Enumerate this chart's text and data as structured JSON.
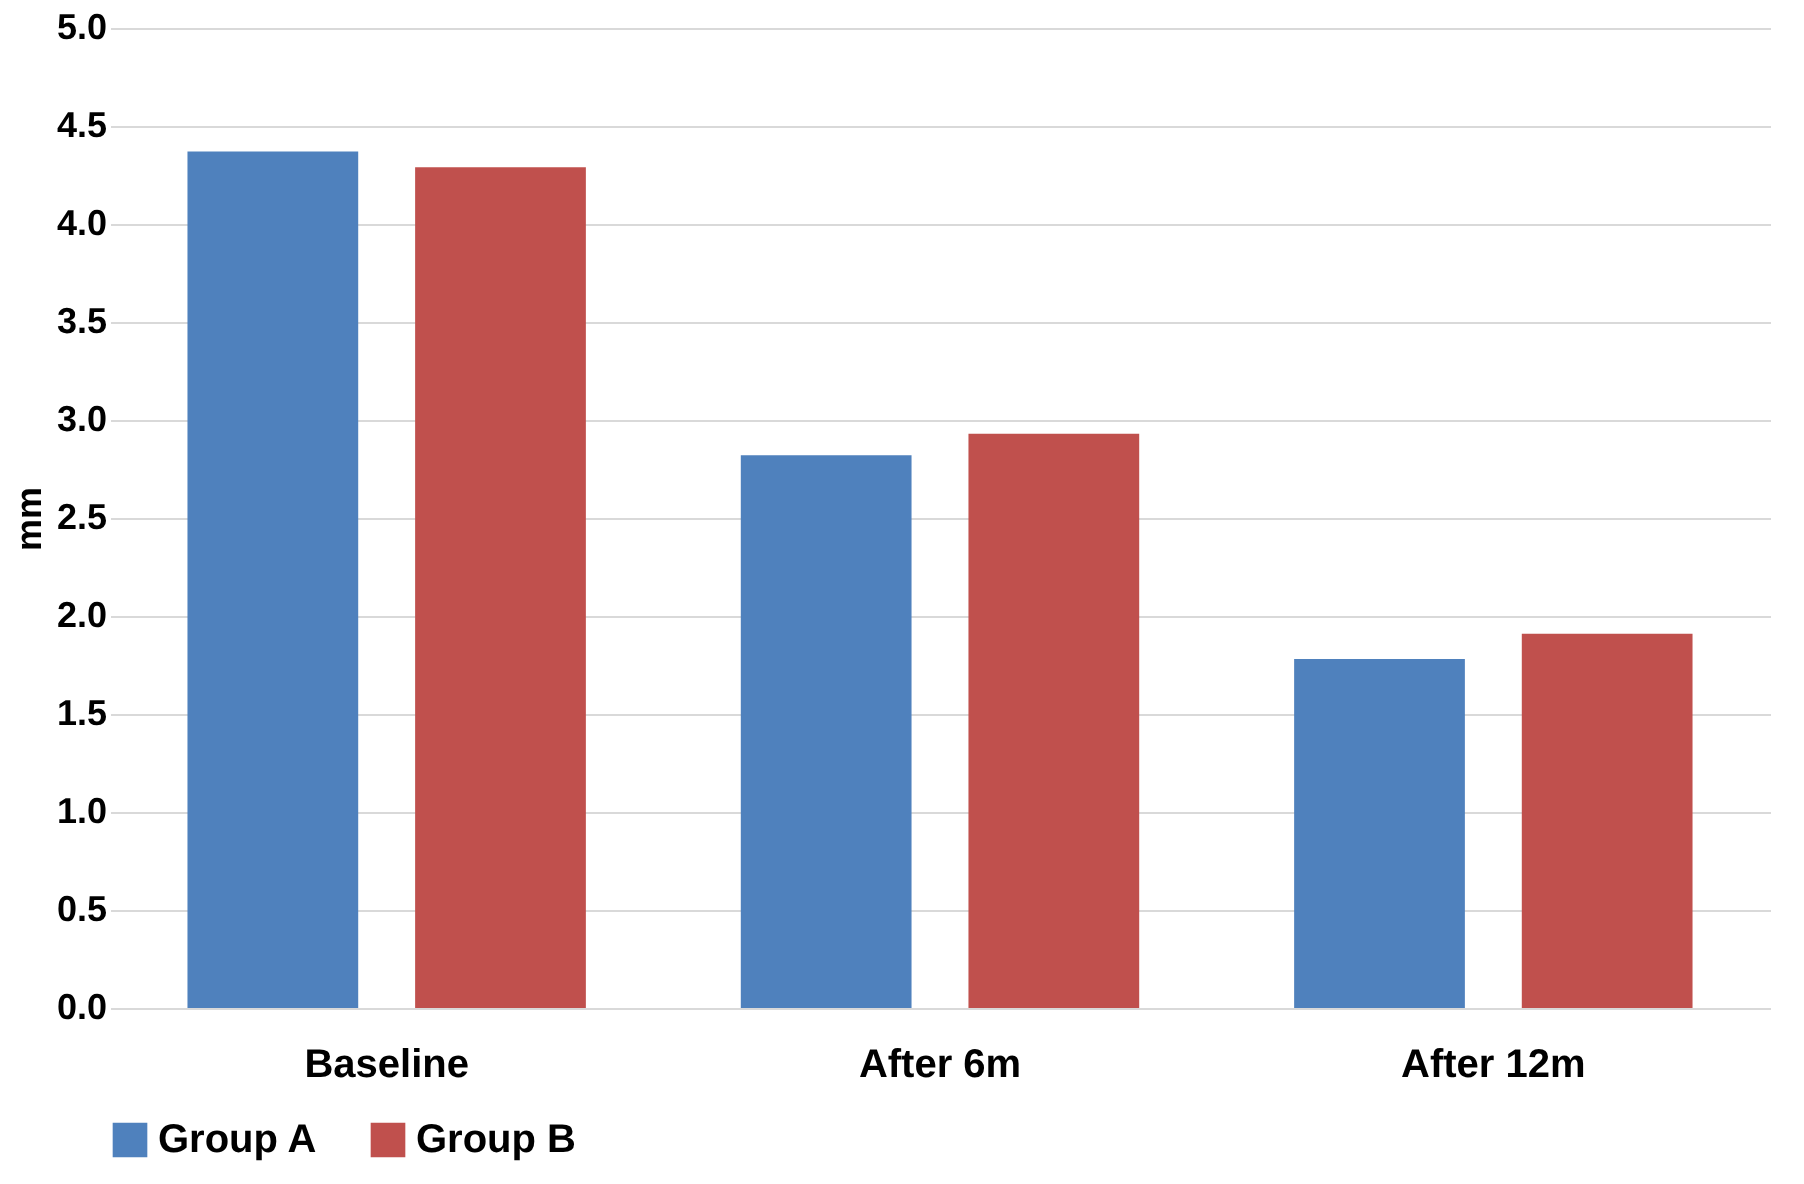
{
  "chart_data": {
    "type": "bar",
    "ylabel": "mm",
    "categories": [
      "Baseline",
      "After 6m",
      "After 12m"
    ],
    "series": [
      {
        "name": "Group A",
        "color": "#4f81bd",
        "values": [
          4.37,
          2.82,
          1.78
        ]
      },
      {
        "name": "Group B",
        "color": "#c0504d",
        "values": [
          4.29,
          2.93,
          1.91
        ]
      }
    ],
    "ylim": [
      0,
      5
    ],
    "yticks": [
      {
        "value": 0,
        "label": "0.0"
      },
      {
        "value": 0.5,
        "label": "0.5"
      },
      {
        "value": 1,
        "label": "1.0"
      },
      {
        "value": 1.5,
        "label": "1.5"
      },
      {
        "value": 2,
        "label": "2.0"
      },
      {
        "value": 2.5,
        "label": "2.5"
      },
      {
        "value": 3,
        "label": "3.0"
      },
      {
        "value": 3.5,
        "label": "3.5"
      },
      {
        "value": 4,
        "label": "4.0"
      },
      {
        "value": 4.5,
        "label": "4.5"
      },
      {
        "value": 5,
        "label": "5.0"
      }
    ],
    "grid": "y",
    "legend": "bottom"
  }
}
